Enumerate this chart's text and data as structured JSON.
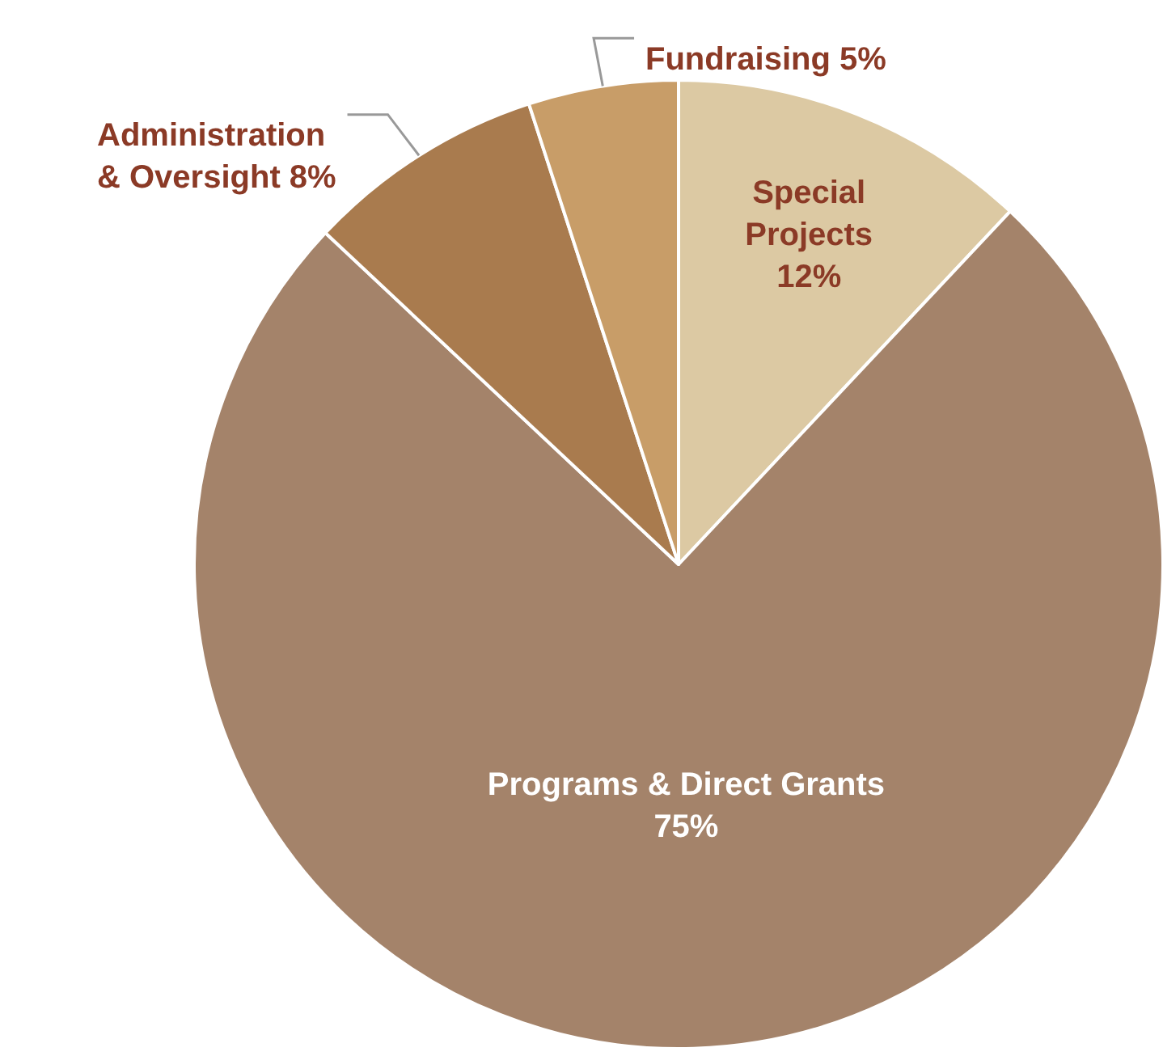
{
  "chart_data": {
    "type": "pie",
    "categories": [
      "Special\nProjects",
      "Programs & Direct Grants",
      "Administration\n& Oversight",
      "Fundraising"
    ],
    "values": [
      12,
      75,
      8,
      5
    ],
    "value_labels": [
      "12%",
      "75%",
      "8%",
      "5%"
    ],
    "colors": [
      "#dcc9a3",
      "#a4836a",
      "#a97b4e",
      "#c89d68"
    ],
    "legend": false
  }
}
